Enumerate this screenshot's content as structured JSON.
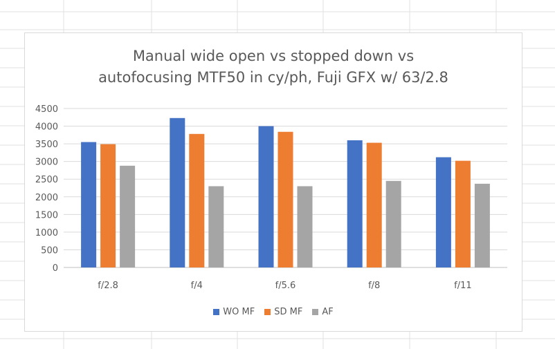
{
  "chart_data": {
    "type": "bar",
    "title": "Manual wide open vs stopped down vs\nautofocusing MTF50 in cy/ph, Fuji GFX w/ 63/2.8",
    "categories": [
      "f/2.8",
      "f/4",
      "f/5.6",
      "f/8",
      "f/11"
    ],
    "series": [
      {
        "name": "WO MF",
        "color": "#4472c4",
        "values": [
          3550,
          4230,
          4000,
          3600,
          3120
        ]
      },
      {
        "name": "SD MF",
        "color": "#ed7d31",
        "values": [
          3490,
          3780,
          3840,
          3530,
          3020
        ]
      },
      {
        "name": "AF",
        "color": "#a5a5a5",
        "values": [
          2880,
          2300,
          2300,
          2450,
          2370
        ]
      }
    ],
    "y_ticks": [
      "0",
      "500",
      "1000",
      "1500",
      "2000",
      "2500",
      "3000",
      "3500",
      "4000",
      "4500"
    ],
    "ylim": [
      0,
      4500
    ],
    "grid": true,
    "legend_position": "bottom"
  }
}
